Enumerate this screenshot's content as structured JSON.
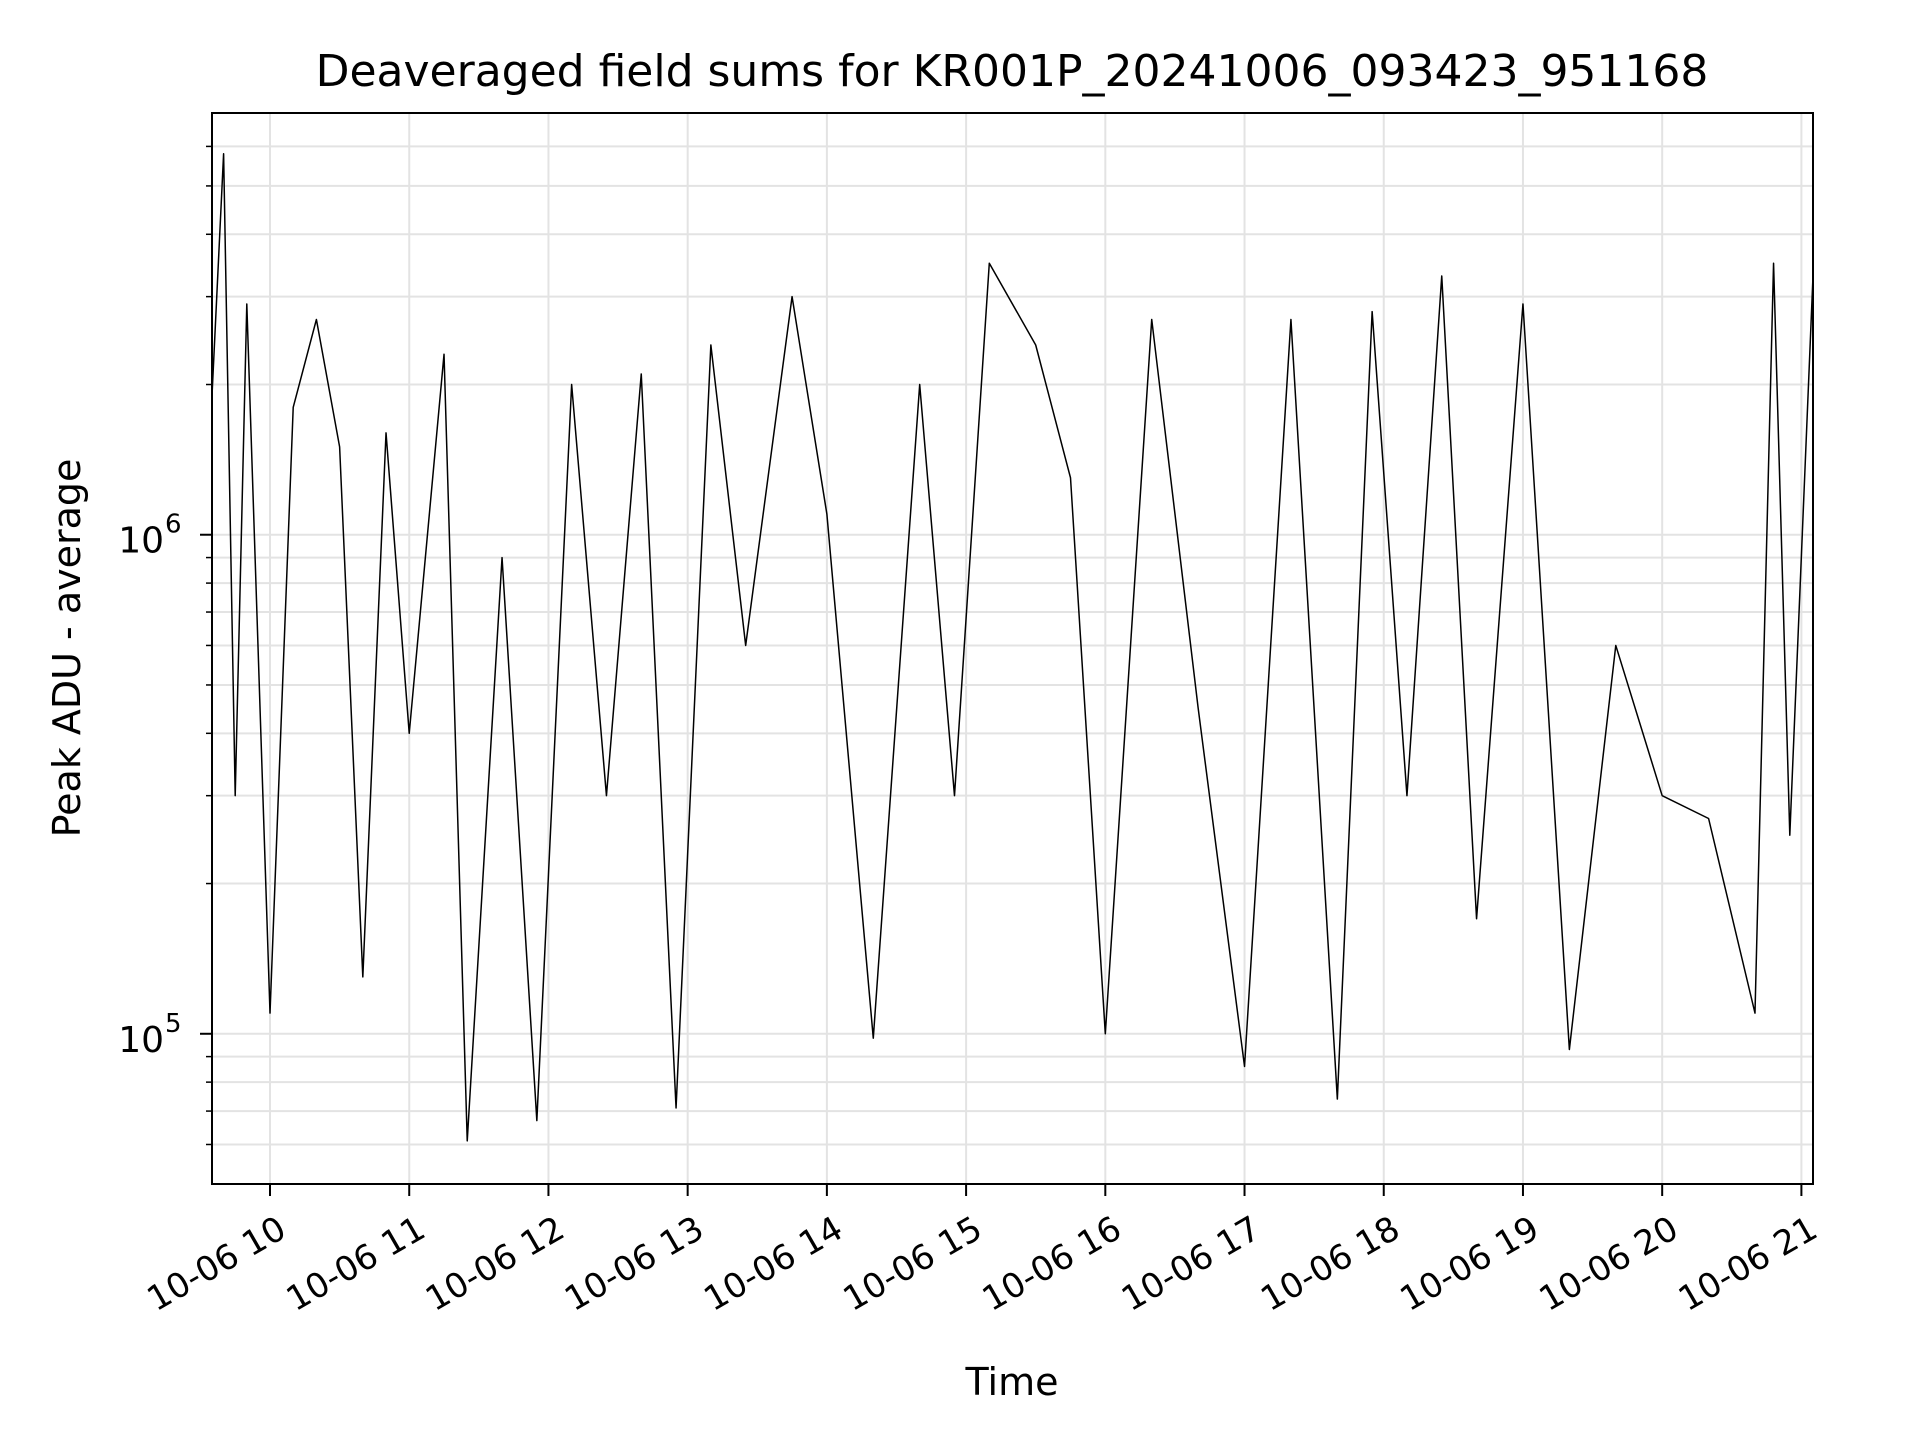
{
  "chart_data": {
    "type": "line",
    "title": "Deaveraged field sums for KR001P_20241006_093423_951168",
    "xlabel": "Time",
    "ylabel": "Peak ADU - average",
    "yscale": "log",
    "ylim": [
      50000,
      7000000
    ],
    "xlim": [
      "2024-10-06 09:35",
      "2024-10-06 21:05"
    ],
    "x_ticks": [
      "10-06 10",
      "10-06 11",
      "10-06 12",
      "10-06 13",
      "10-06 14",
      "10-06 15",
      "10-06 16",
      "10-06 17",
      "10-06 18",
      "10-06 19",
      "10-06 20",
      "10-06 21"
    ],
    "y_ticks": [
      {
        "value": 100000,
        "base": "10",
        "exp": "5"
      },
      {
        "value": 1000000,
        "base": "10",
        "exp": "6"
      }
    ],
    "grid": true,
    "line_color": "#000000",
    "series": [
      {
        "x": [
          "2024-10-06 09:35",
          "2024-10-06 09:40",
          "2024-10-06 09:45",
          "2024-10-06 09:50",
          "2024-10-06 10:00",
          "2024-10-06 10:10",
          "2024-10-06 10:20",
          "2024-10-06 10:30",
          "2024-10-06 10:40",
          "2024-10-06 10:50",
          "2024-10-06 11:00",
          "2024-10-06 11:15",
          "2024-10-06 11:25",
          "2024-10-06 11:40",
          "2024-10-06 11:55",
          "2024-10-06 12:10",
          "2024-10-06 12:25",
          "2024-10-06 12:40",
          "2024-10-06 12:55",
          "2024-10-06 13:10",
          "2024-10-06 13:25",
          "2024-10-06 13:45",
          "2024-10-06 14:00",
          "2024-10-06 14:20",
          "2024-10-06 14:40",
          "2024-10-06 14:55",
          "2024-10-06 15:10",
          "2024-10-06 15:30",
          "2024-10-06 15:45",
          "2024-10-06 16:00",
          "2024-10-06 16:20",
          "2024-10-06 16:40",
          "2024-10-06 17:00",
          "2024-10-06 17:20",
          "2024-10-06 17:40",
          "2024-10-06 17:55",
          "2024-10-06 18:10",
          "2024-10-06 18:25",
          "2024-10-06 18:40",
          "2024-10-06 19:00",
          "2024-10-06 19:20",
          "2024-10-06 19:40",
          "2024-10-06 20:00",
          "2024-10-06 20:20",
          "2024-10-06 20:40",
          "2024-10-06 20:48",
          "2024-10-06 20:55",
          "2024-10-06 21:05"
        ],
        "y": [
          1900000,
          5800000,
          300000,
          2900000,
          110000,
          1800000,
          2700000,
          1500000,
          130000,
          1600000,
          400000,
          2300000,
          61000,
          900000,
          67000,
          2000000,
          300000,
          2100000,
          71000,
          2400000,
          600000,
          3000000,
          1100000,
          98000,
          2000000,
          300000,
          3500000,
          2400000,
          1300000,
          100000,
          2700000,
          450000,
          86000,
          2700000,
          74000,
          2800000,
          300000,
          3300000,
          170000,
          2900000,
          93000,
          600000,
          300000,
          270000,
          110000,
          3500000,
          250000,
          3300000
        ]
      }
    ]
  }
}
